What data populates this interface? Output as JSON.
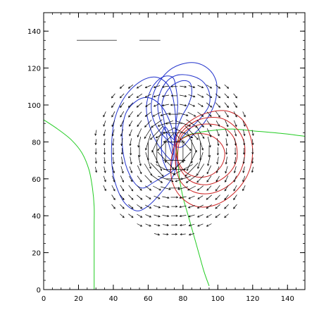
{
  "chart_data": {
    "type": "vector-field-contour",
    "title": "",
    "xlabel": "",
    "ylabel": "",
    "xlim": [
      0,
      150
    ],
    "ylim": [
      0,
      150
    ],
    "x_ticks": [
      "0",
      "20",
      "40",
      "60",
      "80",
      "100",
      "120",
      "140"
    ],
    "y_ticks": [
      "0",
      "20",
      "40",
      "60",
      "80",
      "100",
      "120",
      "140"
    ],
    "x_tick_values": [
      0,
      20,
      40,
      60,
      80,
      100,
      120,
      140
    ],
    "y_tick_values": [
      0,
      20,
      40,
      60,
      80,
      100,
      120,
      140
    ],
    "x_minor_step": 5,
    "y_minor_step": 5,
    "legend_lines": [
      {
        "x_start": 19,
        "x_end": 42,
        "y": 135
      },
      {
        "x_start": 55,
        "x_end": 67,
        "y": 135
      }
    ],
    "colors": {
      "axes": "#000000",
      "arrows": "#000000",
      "positive_contours": "#cc2222",
      "negative_contours": "#2233cc",
      "neutral_line": "#22cc22"
    },
    "negative_contours": [
      [
        [
          77,
          80
        ],
        [
          70,
          86
        ],
        [
          66,
          95
        ],
        [
          66,
          104
        ],
        [
          70,
          112
        ],
        [
          76,
          116
        ],
        [
          84,
          116
        ],
        [
          91,
          113
        ],
        [
          95,
          107
        ],
        [
          95,
          100
        ],
        [
          91,
          94
        ],
        [
          85,
          88
        ],
        [
          80,
          83
        ],
        [
          77,
          80
        ]
      ],
      [
        [
          78,
          77
        ],
        [
          69,
          83
        ],
        [
          63,
          92
        ],
        [
          62,
          102
        ],
        [
          66,
          112
        ],
        [
          74,
          120
        ],
        [
          85,
          123
        ],
        [
          94,
          120
        ],
        [
          99,
          113
        ],
        [
          99,
          104
        ],
        [
          96,
          96
        ],
        [
          91,
          89
        ],
        [
          85,
          83
        ],
        [
          78,
          77
        ]
      ],
      [
        [
          74,
          73
        ],
        [
          71,
          82
        ],
        [
          69,
          92
        ],
        [
          68,
          101
        ],
        [
          72,
          109
        ],
        [
          79,
          113
        ],
        [
          84,
          112
        ],
        [
          85,
          106
        ],
        [
          83,
          100
        ],
        [
          79,
          93
        ],
        [
          76,
          85
        ],
        [
          75,
          78
        ],
        [
          74,
          73
        ]
      ],
      [
        [
          74,
          70
        ],
        [
          66,
          78
        ],
        [
          61,
          88
        ],
        [
          59,
          99
        ],
        [
          62,
          109
        ],
        [
          68,
          115
        ],
        [
          74,
          115
        ],
        [
          76,
          109
        ],
        [
          77,
          100
        ],
        [
          76,
          90
        ],
        [
          75,
          80
        ],
        [
          74,
          70
        ]
      ],
      [
        [
          76,
          66
        ],
        [
          63,
          58
        ],
        [
          57,
          55
        ],
        [
          52,
          58
        ],
        [
          47,
          68
        ],
        [
          45,
          82
        ],
        [
          47,
          95
        ],
        [
          53,
          102
        ],
        [
          60,
          104
        ],
        [
          67,
          100
        ],
        [
          72,
          92
        ],
        [
          75,
          82
        ],
        [
          76,
          74
        ],
        [
          76,
          66
        ]
      ],
      [
        [
          75,
          63
        ],
        [
          66,
          51
        ],
        [
          58,
          44
        ],
        [
          52,
          43
        ],
        [
          45,
          49
        ],
        [
          40,
          62
        ],
        [
          39,
          78
        ],
        [
          41,
          93
        ],
        [
          47,
          105
        ],
        [
          56,
          113
        ],
        [
          65,
          115
        ],
        [
          72,
          110
        ],
        [
          75,
          100
        ],
        [
          76,
          88
        ],
        [
          76,
          76
        ],
        [
          75,
          63
        ]
      ]
    ],
    "negative_inner_contours": [
      [
        [
          72,
          64
        ],
        [
          68,
          72
        ],
        [
          68,
          84
        ],
        [
          70,
          88
        ],
        [
          73,
          82
        ],
        [
          74,
          72
        ],
        [
          72,
          64
        ]
      ]
    ],
    "positive_contours": [
      [
        [
          77,
          80
        ],
        [
          85,
          84
        ],
        [
          94,
          84
        ],
        [
          101,
          80
        ],
        [
          104,
          74
        ],
        [
          102,
          67
        ],
        [
          96,
          62
        ],
        [
          88,
          61
        ],
        [
          81,
          64
        ],
        [
          77,
          70
        ],
        [
          76,
          76
        ],
        [
          77,
          80
        ]
      ],
      [
        [
          79,
          83
        ],
        [
          88,
          89
        ],
        [
          100,
          89
        ],
        [
          108,
          84
        ],
        [
          111,
          76
        ],
        [
          110,
          68
        ],
        [
          104,
          61
        ],
        [
          95,
          57
        ],
        [
          86,
          58
        ],
        [
          80,
          63
        ],
        [
          77,
          70
        ],
        [
          79,
          83
        ]
      ],
      [
        [
          79,
          85
        ],
        [
          89,
          92
        ],
        [
          101,
          93
        ],
        [
          110,
          88
        ],
        [
          115,
          80
        ],
        [
          115,
          70
        ],
        [
          111,
          61
        ],
        [
          104,
          55
        ],
        [
          95,
          52
        ],
        [
          86,
          53
        ],
        [
          79,
          58
        ],
        [
          76,
          66
        ],
        [
          76,
          75
        ],
        [
          79,
          85
        ]
      ],
      [
        [
          78,
          86
        ],
        [
          89,
          94
        ],
        [
          103,
          97
        ],
        [
          113,
          93
        ],
        [
          118,
          85
        ],
        [
          120,
          74
        ],
        [
          117,
          62
        ],
        [
          109,
          52
        ],
        [
          99,
          46
        ],
        [
          88,
          45
        ],
        [
          79,
          50
        ],
        [
          74,
          58
        ],
        [
          73,
          68
        ],
        [
          75,
          78
        ],
        [
          78,
          86
        ]
      ]
    ],
    "neutral_lines": [
      [
        [
          0,
          92
        ],
        [
          8,
          87
        ],
        [
          16,
          81
        ],
        [
          22,
          74
        ],
        [
          26,
          65
        ],
        [
          28,
          55
        ],
        [
          29,
          45
        ],
        [
          29,
          35
        ],
        [
          29,
          25
        ],
        [
          29,
          15
        ],
        [
          29,
          5
        ],
        [
          29,
          0
        ]
      ],
      [
        [
          76,
          80
        ],
        [
          84,
          84
        ],
        [
          95,
          86
        ],
        [
          108,
          87
        ],
        [
          120,
          86
        ],
        [
          132,
          85
        ],
        [
          142,
          84
        ],
        [
          150,
          83
        ]
      ],
      [
        [
          76,
          80
        ],
        [
          77,
          70
        ],
        [
          78,
          60
        ],
        [
          80,
          50
        ],
        [
          83,
          40
        ],
        [
          86,
          30
        ],
        [
          89,
          20
        ],
        [
          92,
          10
        ],
        [
          95,
          2
        ]
      ]
    ],
    "field_center": [
      75,
      75
    ]
  }
}
